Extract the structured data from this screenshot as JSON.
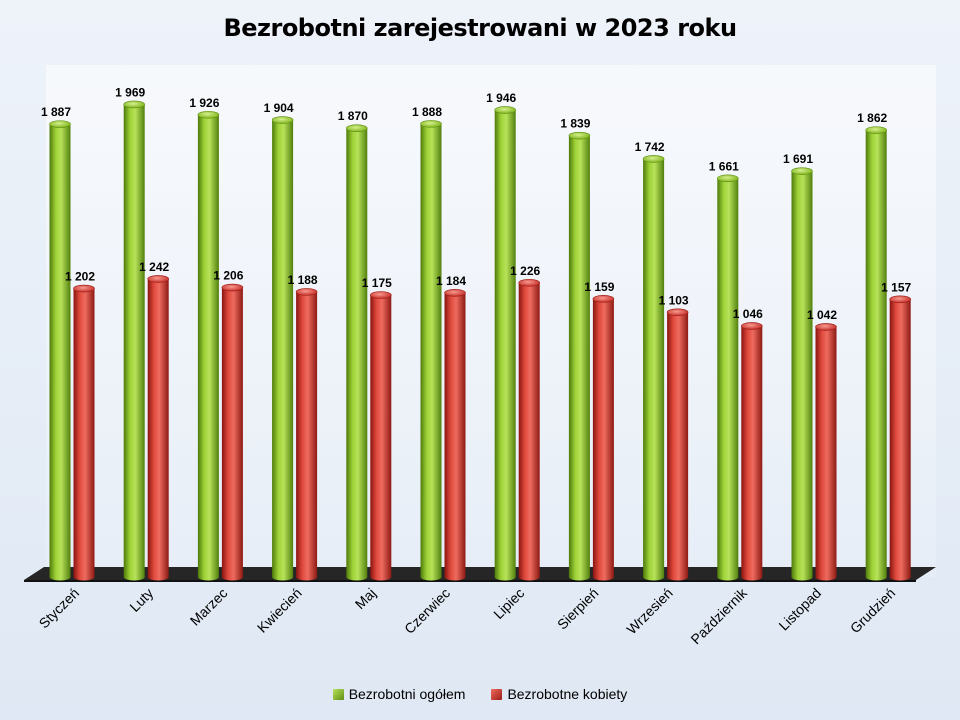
{
  "chart_data": {
    "type": "bar",
    "title": "Bezrobotni zarejestrowani w 2023 roku",
    "categories": [
      "Styczeń",
      "Luty",
      "Marzec",
      "Kwiecień",
      "Maj",
      "Czerwiec",
      "Lipiec",
      "Sierpień",
      "Wrzesień",
      "Październik",
      "Listopad",
      "Grudzień"
    ],
    "series": [
      {
        "name": "Bezrobotni ogółem",
        "color": "#8dc21f",
        "values": [
          1887,
          1969,
          1926,
          1904,
          1870,
          1888,
          1946,
          1839,
          1742,
          1661,
          1691,
          1862
        ],
        "labels": [
          "1 887",
          "1 969",
          "1 926",
          "1 904",
          "1 870",
          "1 888",
          "1 946",
          "1 839",
          "1 742",
          "1 661",
          "1 691",
          "1 862"
        ]
      },
      {
        "name": "Bezrobotne kobiety",
        "color": "#d93a30",
        "values": [
          1202,
          1242,
          1206,
          1188,
          1175,
          1184,
          1226,
          1159,
          1103,
          1046,
          1042,
          1157
        ],
        "labels": [
          "1 202",
          "1 242",
          "1 206",
          "1 188",
          "1 175",
          "1 184",
          "1 226",
          "1 159",
          "1 103",
          "1 046",
          "1 042",
          "1 157"
        ]
      }
    ],
    "xlabel": "",
    "ylabel": "",
    "ylim": [
      0,
      2000
    ],
    "grid": false,
    "legend_position": "bottom"
  }
}
